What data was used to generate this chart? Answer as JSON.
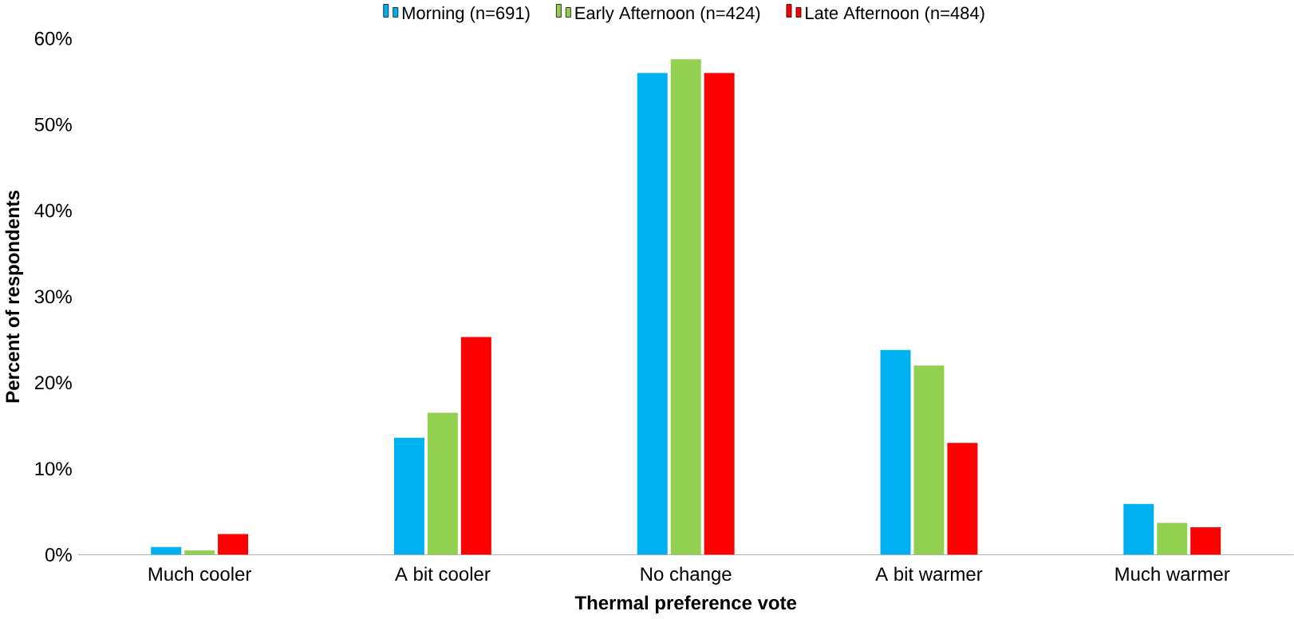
{
  "chart_data": {
    "type": "bar",
    "xlabel": "Thermal preference vote",
    "ylabel": "Percent of respondents",
    "categories": [
      "Much cooler",
      "A bit cooler",
      "No change",
      "A bit warmer",
      "Much warmer"
    ],
    "series": [
      {
        "name": "Morning (n=691)",
        "color": "#00b0f0",
        "values": [
          0.9,
          13.6,
          56.0,
          23.8,
          5.9
        ]
      },
      {
        "name": "Early Afternoon (n=424)",
        "color": "#92d050",
        "values": [
          0.5,
          16.5,
          57.6,
          22.0,
          3.7
        ]
      },
      {
        "name": "Late Afternoon (n=484)",
        "color": "#ff0000",
        "values": [
          2.4,
          25.3,
          56.0,
          13.0,
          3.2
        ]
      }
    ],
    "ylim": [
      0,
      60
    ],
    "yticks": [
      {
        "value": 0,
        "label": "0%"
      },
      {
        "value": 10,
        "label": "10%"
      },
      {
        "value": 20,
        "label": "20%"
      },
      {
        "value": 30,
        "label": "30%"
      },
      {
        "value": 40,
        "label": "40%"
      },
      {
        "value": 50,
        "label": "50%"
      },
      {
        "value": 60,
        "label": "60%"
      }
    ],
    "legend": "top",
    "grid": false
  }
}
